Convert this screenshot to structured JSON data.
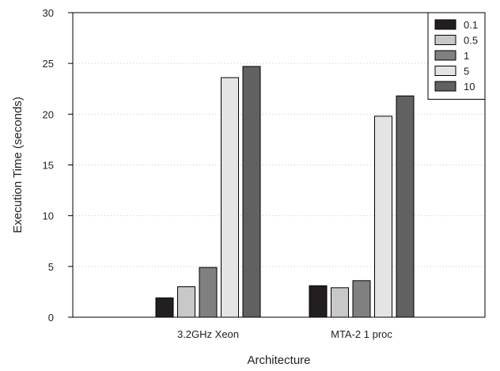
{
  "chart_data": {
    "type": "bar",
    "title": "",
    "xlabel": "Architecture",
    "ylabel": "Execution Time (seconds)",
    "ylim": [
      0,
      30
    ],
    "yticks": [
      0,
      5,
      10,
      15,
      20,
      25,
      30
    ],
    "grid": "horizontal dotted",
    "legend_position": "top-right",
    "categories": [
      "3.2GHz Xeon",
      "MTA-2 1 proc"
    ],
    "series": [
      {
        "name": "0.1",
        "color": "#231f20",
        "values": [
          1.9,
          3.1
        ]
      },
      {
        "name": "0.5",
        "color": "#c8c8c8",
        "values": [
          3.0,
          2.9
        ]
      },
      {
        "name": "1",
        "color": "#808080",
        "values": [
          4.9,
          3.6
        ]
      },
      {
        "name": "5",
        "color": "#e4e4e4",
        "values": [
          23.6,
          19.8
        ]
      },
      {
        "name": "10",
        "color": "#616161",
        "values": [
          24.7,
          21.8
        ]
      }
    ]
  }
}
